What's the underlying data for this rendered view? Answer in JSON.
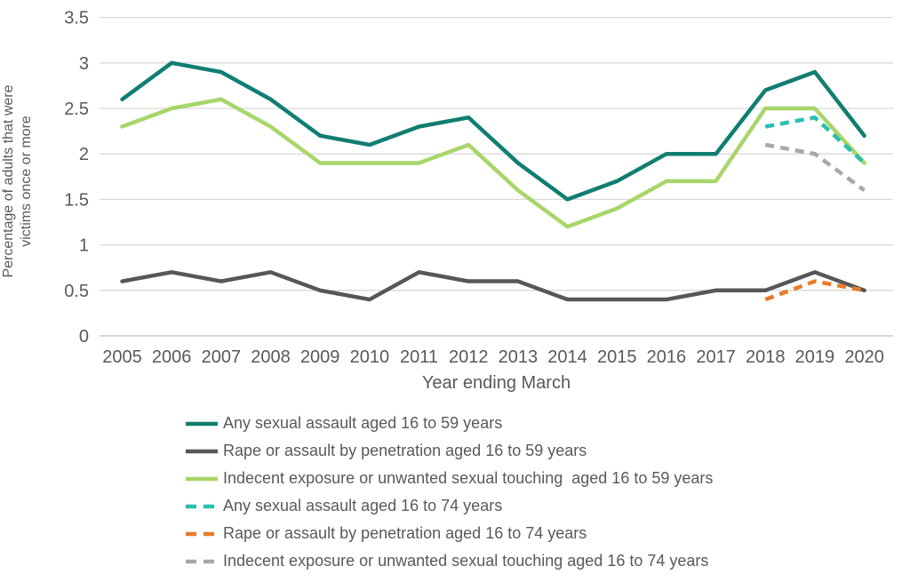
{
  "chart_data": {
    "type": "line",
    "title": "",
    "xlabel": "Year ending March",
    "ylabel_line1": "Percentage of adults that were",
    "ylabel_line2": "victims once or more",
    "ylabel": "Percentage of adults that were victims once or more",
    "x": [
      2005,
      2006,
      2007,
      2008,
      2009,
      2010,
      2011,
      2012,
      2013,
      2014,
      2015,
      2016,
      2017,
      2018,
      2019,
      2020
    ],
    "ylim": [
      0,
      3.5
    ],
    "ytick_step": 0.5,
    "grid": true,
    "legend_position": "bottom-left",
    "colors": {
      "gridline": "#D9D9D9",
      "baseline": "#BFBFBF",
      "axis_text": "#595959"
    },
    "series": [
      {
        "name": "Any sexual assault aged 16 to 59 years",
        "color": "#107E71",
        "dash": false,
        "values": [
          2.6,
          3.0,
          2.9,
          2.6,
          2.2,
          2.1,
          2.3,
          2.4,
          1.9,
          1.5,
          1.7,
          2.0,
          2.0,
          2.7,
          2.9,
          2.2
        ]
      },
      {
        "name": "Rape or assault by penetration aged 16 to 59 years",
        "color": "#55575A",
        "dash": false,
        "values": [
          0.6,
          0.7,
          0.6,
          0.7,
          0.5,
          0.4,
          0.7,
          0.6,
          0.6,
          0.4,
          0.4,
          0.4,
          0.5,
          0.5,
          0.7,
          0.5
        ]
      },
      {
        "name": "Indecent exposure or unwanted sexual touching  aged 16 to 59 years",
        "color": "#A8D66A",
        "dash": false,
        "values": [
          2.3,
          2.5,
          2.6,
          2.3,
          1.9,
          1.9,
          1.9,
          2.1,
          1.6,
          1.2,
          1.4,
          1.7,
          1.7,
          2.5,
          2.5,
          1.9
        ]
      },
      {
        "name": "Any sexual assault aged 16 to 74 years",
        "color": "#2ABFAF",
        "dash": true,
        "values": [
          null,
          null,
          null,
          null,
          null,
          null,
          null,
          null,
          null,
          null,
          null,
          null,
          null,
          2.3,
          2.4,
          1.9
        ]
      },
      {
        "name": "Rape or assault by penetration aged 16 to 74 years",
        "color": "#E97B28",
        "dash": true,
        "values": [
          null,
          null,
          null,
          null,
          null,
          null,
          null,
          null,
          null,
          null,
          null,
          null,
          null,
          0.4,
          0.6,
          0.5
        ]
      },
      {
        "name": "Indecent exposure or unwanted sexual touching aged 16 to 74 years",
        "color": "#A8A8A8",
        "dash": true,
        "values": [
          null,
          null,
          null,
          null,
          null,
          null,
          null,
          null,
          null,
          null,
          null,
          null,
          null,
          2.1,
          2.0,
          1.6
        ]
      }
    ]
  }
}
